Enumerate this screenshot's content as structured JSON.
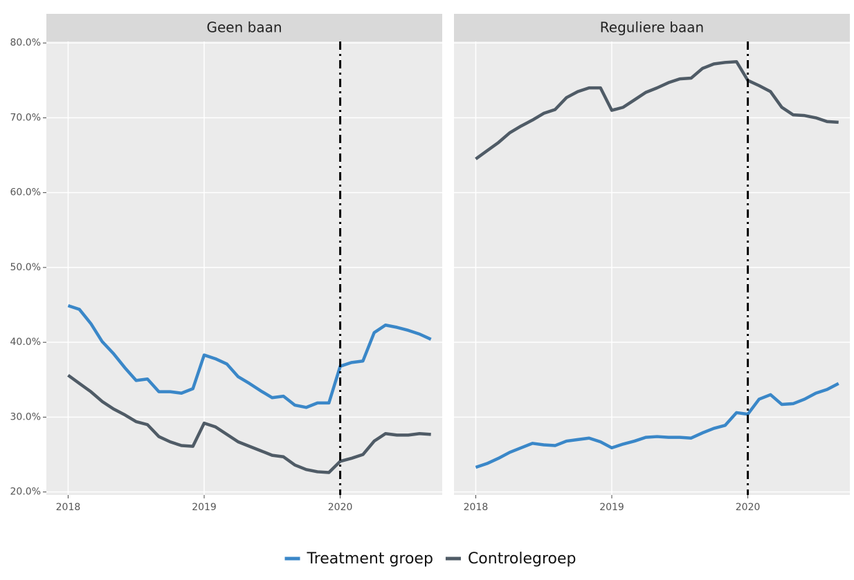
{
  "chart_data": [
    {
      "type": "line",
      "title": "Geen baan",
      "x": [
        2018,
        2018.083,
        2018.167,
        2018.25,
        2018.333,
        2018.417,
        2018.5,
        2018.583,
        2018.667,
        2018.75,
        2018.833,
        2018.917,
        2019,
        2019.083,
        2019.167,
        2019.25,
        2019.333,
        2019.417,
        2019.5,
        2019.583,
        2019.667,
        2019.75,
        2019.833,
        2019.917,
        2020,
        2020.083,
        2020.167,
        2020.25,
        2020.333,
        2020.417,
        2020.5,
        2020.583,
        2020.667
      ],
      "series": [
        {
          "name": "Treatment groep",
          "color": "#3a87c8",
          "values": [
            44.9,
            44.4,
            42.5,
            40.1,
            38.5,
            36.6,
            34.9,
            35.1,
            33.4,
            33.4,
            33.2,
            33.8,
            38.3,
            37.8,
            37.1,
            35.4,
            34.5,
            33.5,
            32.6,
            32.8,
            31.6,
            31.3,
            31.9,
            31.9,
            36.8,
            37.3,
            37.5,
            41.3,
            42.3,
            42.0,
            41.6,
            41.1,
            40.4
          ]
        },
        {
          "name": "Controlegroep",
          "color": "#4f5b66",
          "values": [
            35.6,
            34.5,
            33.4,
            32.1,
            31.1,
            30.3,
            29.4,
            29.0,
            27.4,
            26.7,
            26.2,
            26.1,
            29.2,
            28.7,
            27.7,
            26.7,
            26.1,
            25.5,
            24.9,
            24.7,
            23.6,
            23.0,
            22.7,
            22.6,
            24.1,
            24.5,
            25.0,
            26.8,
            27.8,
            27.6,
            27.6,
            27.8,
            27.7
          ]
        }
      ],
      "vline": 2020,
      "xlim": [
        2017.84,
        2020.75
      ],
      "xticks": [
        2018,
        2019,
        2020
      ],
      "ylim": [
        19.6,
        80.2
      ],
      "yticks": [
        {
          "value": 20,
          "label": "20.0%"
        },
        {
          "value": 30,
          "label": "30.0%"
        },
        {
          "value": 40,
          "label": "40.0%"
        },
        {
          "value": 50,
          "label": "50.0%"
        },
        {
          "value": 60,
          "label": "60.0%"
        },
        {
          "value": 70,
          "label": "70.0%"
        },
        {
          "value": 80,
          "label": "80.0%"
        }
      ],
      "grid": true,
      "legend": "bottom"
    },
    {
      "type": "line",
      "title": "Reguliere baan",
      "x": [
        2018,
        2018.083,
        2018.167,
        2018.25,
        2018.333,
        2018.417,
        2018.5,
        2018.583,
        2018.667,
        2018.75,
        2018.833,
        2018.917,
        2019,
        2019.083,
        2019.167,
        2019.25,
        2019.333,
        2019.417,
        2019.5,
        2019.583,
        2019.667,
        2019.75,
        2019.833,
        2019.917,
        2020,
        2020.083,
        2020.167,
        2020.25,
        2020.333,
        2020.417,
        2020.5,
        2020.583,
        2020.667
      ],
      "series": [
        {
          "name": "Treatment groep",
          "color": "#3a87c8",
          "values": [
            23.3,
            23.8,
            24.5,
            25.3,
            25.9,
            26.5,
            26.3,
            26.2,
            26.8,
            27.0,
            27.2,
            26.7,
            25.9,
            26.4,
            26.8,
            27.3,
            27.4,
            27.3,
            27.3,
            27.2,
            27.9,
            28.5,
            28.9,
            30.6,
            30.4,
            32.4,
            33.0,
            31.7,
            31.8,
            32.4,
            33.2,
            33.7,
            34.5
          ]
        },
        {
          "name": "Controlegroep",
          "color": "#4f5b66",
          "values": [
            64.5,
            65.6,
            66.7,
            68.0,
            68.9,
            69.7,
            70.6,
            71.1,
            72.7,
            73.5,
            74.0,
            74.0,
            71.0,
            71.4,
            72.4,
            73.4,
            74.0,
            74.7,
            75.2,
            75.3,
            76.6,
            77.2,
            77.4,
            77.5,
            75.0,
            74.3,
            73.5,
            71.4,
            70.4,
            70.3,
            70.0,
            69.5,
            69.4
          ]
        }
      ],
      "vline": 2020,
      "xlim": [
        2017.84,
        2020.75
      ],
      "xticks": [
        2018,
        2019,
        2020
      ],
      "ylim": [
        19.6,
        80.2
      ],
      "yticks": [
        {
          "value": 20,
          "label": "20.0%"
        },
        {
          "value": 30,
          "label": "30.0%"
        },
        {
          "value": 40,
          "label": "40.0%"
        },
        {
          "value": 50,
          "label": "50.0%"
        },
        {
          "value": 60,
          "label": "60.0%"
        },
        {
          "value": 70,
          "label": "70.0%"
        },
        {
          "value": 80,
          "label": "80.0%"
        }
      ],
      "grid": true
    }
  ]
}
